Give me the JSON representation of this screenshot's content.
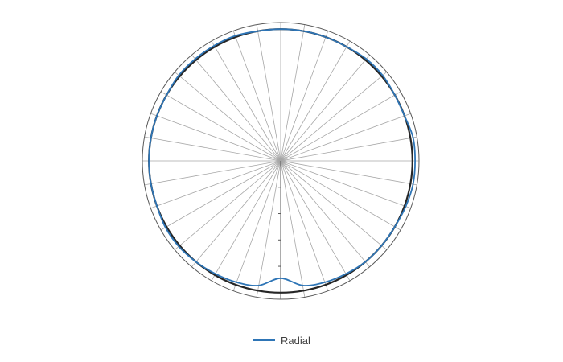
{
  "colors": {
    "series": "#2e75b6",
    "reference": "#262626",
    "outer_ring": "#595959",
    "spokes": "#a6a6a6",
    "axis": "#595959"
  },
  "chart_data": {
    "type": "radar",
    "title": "",
    "categories_count": 36,
    "angle_step_deg": 10,
    "axis": {
      "min": 0,
      "max": 1.05,
      "major_unit": 0.2,
      "tick_labels_visible": false
    },
    "grid": true,
    "legend_position": "bottom",
    "series": [
      {
        "name": "Radial",
        "color": "#2e75b6",
        "values": [
          1.0,
          1.0,
          1.0,
          1.0,
          1.01,
          1.01,
          1.0,
          1.0,
          1.02,
          1.02,
          1.02,
          1.01,
          1.0,
          1.0,
          1.0,
          0.99,
          0.98,
          0.96,
          0.89,
          0.96,
          0.98,
          0.99,
          1.0,
          1.01,
          1.01,
          1.0,
          1.0,
          1.0,
          1.0,
          1.0,
          1.0,
          1.01,
          1.01,
          1.01,
          1.01,
          1.0
        ]
      },
      {
        "name": "",
        "color": "#262626",
        "values": [
          1.0,
          1.0,
          1.0,
          1.0,
          1.0,
          1.0,
          1.0,
          1.0,
          1.0,
          1.0,
          1.0,
          1.0,
          1.0,
          1.0,
          1.0,
          1.0,
          1.0,
          1.0,
          1.0,
          1.0,
          1.0,
          1.0,
          1.0,
          1.0,
          1.0,
          1.0,
          1.0,
          1.0,
          1.0,
          1.0,
          1.0,
          1.0,
          1.0,
          1.0,
          1.0,
          1.0
        ]
      }
    ]
  },
  "legend": {
    "label": "Radial"
  }
}
